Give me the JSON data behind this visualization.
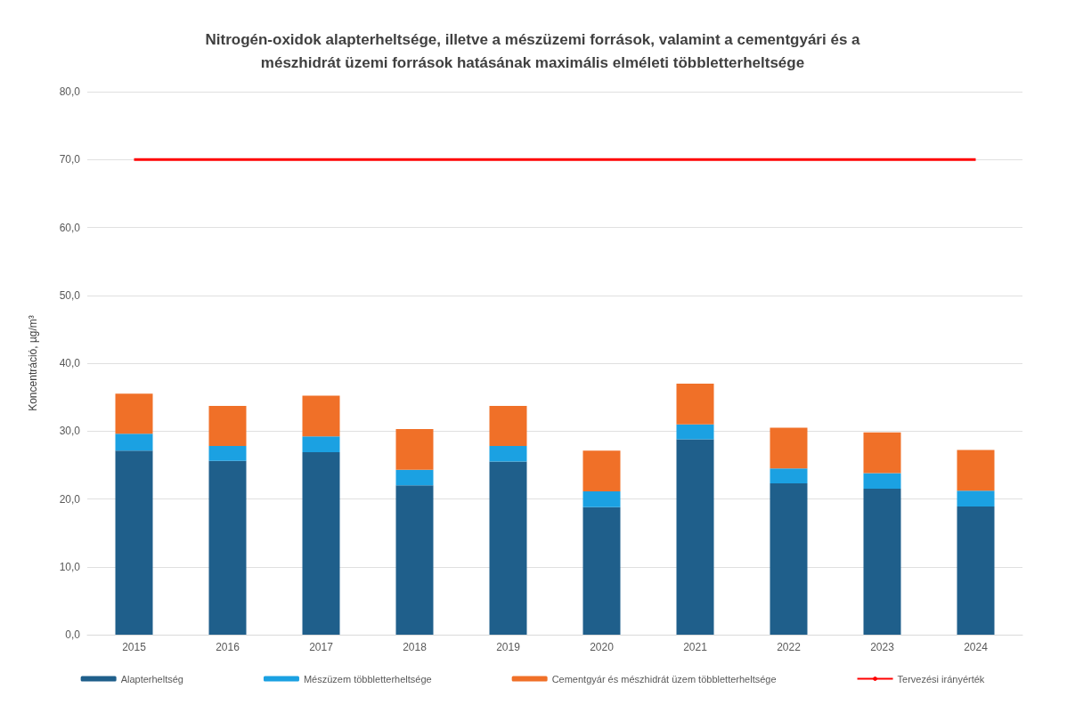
{
  "chart_data": {
    "type": "bar",
    "title": "Nitrogén-oxidok alapterheltsége, illetve a mészüzemi források, valamint a cementgyári és a\nmészhidrát üzemi források hatásának maximális elméleti többletterheltsége",
    "ylabel": "Koncentráció, µg/m³",
    "categories": [
      "2015",
      "2016",
      "2017",
      "2018",
      "2019",
      "2020",
      "2021",
      "2022",
      "2023",
      "2024"
    ],
    "stacked": true,
    "grid": "y",
    "legend": "bottom",
    "ylim": [
      0,
      80
    ],
    "yticks": [
      {
        "value": 0,
        "label": "0,0"
      },
      {
        "value": 10,
        "label": "10,0"
      },
      {
        "value": 20,
        "label": "20,0"
      },
      {
        "value": 30,
        "label": "30,0"
      },
      {
        "value": 40,
        "label": "40,0"
      },
      {
        "value": 50,
        "label": "50,0"
      },
      {
        "value": 60,
        "label": "60,0"
      },
      {
        "value": 70,
        "label": "70,0"
      },
      {
        "value": 80,
        "label": "80,0"
      }
    ],
    "series": [
      {
        "name": "Alapterheltség",
        "color": "#1f5f8b",
        "values": [
          27.1,
          25.6,
          26.9,
          22.0,
          25.5,
          18.8,
          28.8,
          22.3,
          21.5,
          18.9
        ]
      },
      {
        "name": "Mészüzem többletterheltsége",
        "color": "#1ba1e2",
        "values": [
          2.5,
          2.2,
          2.3,
          2.3,
          2.3,
          2.3,
          2.2,
          2.2,
          2.3,
          2.3
        ]
      },
      {
        "name": "Cementgyár és mészhidrát üzem többletterheltsége",
        "color": "#f07028",
        "values": [
          5.9,
          5.9,
          6.0,
          6.0,
          5.9,
          6.0,
          6.0,
          6.0,
          6.0,
          6.0
        ]
      },
      {
        "name": "Tervezési irányérték",
        "type": "line",
        "color": "#ff0000",
        "line_style": "solid",
        "marker": "none",
        "values": [
          70,
          70,
          70,
          70,
          70,
          70,
          70,
          70,
          70,
          70
        ]
      }
    ]
  }
}
